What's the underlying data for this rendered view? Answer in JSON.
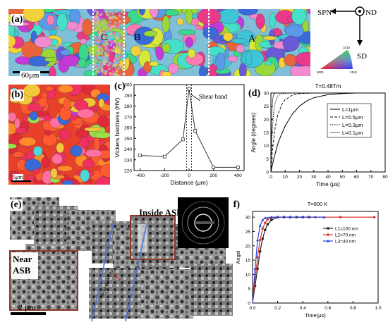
{
  "panel_a": {
    "label": "(a)",
    "region_labels": [
      "C",
      "B",
      "A"
    ],
    "scale_bar": "60μm",
    "axes": {
      "spn": "SPN",
      "nd": "ND",
      "sd": "SD"
    },
    "ipf_key": {
      "top": "1010",
      "left": "0001",
      "right": "2110"
    }
  },
  "panel_b": {
    "label": "(b)",
    "scale_bar": "5μm"
  },
  "panel_c": {
    "label": "(c)",
    "annotation": "Shear band"
  },
  "panel_d": {
    "label": "(d)",
    "title": "T=0.48Tm"
  },
  "panel_e": {
    "label": "(e)",
    "inside_label": "Inside ASB",
    "near_label_1": "Near",
    "near_label_2": "ASB",
    "scale_bar": "2 μm",
    "overlay_text": "shear direction"
  },
  "panel_f": {
    "label": "(f)",
    "title": "T=900 K"
  },
  "chart_data": [
    {
      "type": "line",
      "panel": "(c)",
      "xlabel": "Distance (μm)",
      "ylabel": "Vickers hardness (HV)",
      "xlim": [
        -450,
        450
      ],
      "ylim": [
        220,
        300
      ],
      "xticks": [
        -400,
        -200,
        0,
        200,
        400
      ],
      "yticks": [
        220,
        230,
        240,
        250,
        260,
        270,
        280,
        290,
        300
      ],
      "x": [
        -400,
        -200,
        -50,
        0,
        50,
        200,
        400
      ],
      "y": [
        234,
        233,
        249,
        296,
        257,
        223,
        223
      ],
      "annotation": "Shear band"
    },
    {
      "type": "line",
      "panel": "(d)",
      "title": "T=0.48Tm",
      "xlabel": "Time (μs)",
      "ylabel": "Angle (degrees)",
      "xlim": [
        0,
        80
      ],
      "ylim": [
        0,
        30
      ],
      "xticks": [
        0,
        10,
        20,
        30,
        40,
        50,
        60,
        70,
        80
      ],
      "yticks": [
        0,
        5,
        10,
        15,
        20,
        25,
        30
      ],
      "legend": "right",
      "series": [
        {
          "name": "L=1μm",
          "x": [
            0,
            2,
            5,
            8,
            10,
            15,
            20,
            25,
            30,
            40,
            50,
            60,
            80
          ],
          "y": [
            0,
            5,
            11,
            15,
            17.5,
            22,
            25,
            27,
            28.2,
            29.4,
            29.8,
            30,
            30
          ]
        },
        {
          "name": "L=0.5μm",
          "x": [
            0,
            1,
            3,
            5,
            8,
            10,
            15,
            20,
            30,
            40,
            80
          ],
          "y": [
            0,
            8,
            17,
            22,
            26,
            27.5,
            29.2,
            29.8,
            30,
            30,
            30
          ]
        },
        {
          "name": "L=0.3μm",
          "x": [
            0,
            0.5,
            1,
            2,
            3,
            5,
            8,
            12,
            20,
            80
          ],
          "y": [
            0,
            9,
            16,
            23,
            26.5,
            29,
            29.8,
            30,
            30,
            30
          ]
        },
        {
          "name": "L=0.1μm",
          "x": [
            0,
            0.3,
            0.6,
            1,
            1.5,
            2,
            3,
            5,
            80
          ],
          "y": [
            0,
            12,
            20,
            26,
            28.5,
            29.5,
            30,
            30,
            30
          ]
        }
      ]
    },
    {
      "type": "line",
      "panel": "(f)",
      "title": "T=900 K",
      "xlabel": "Time(μs)",
      "ylabel": "Angel",
      "xlim": [
        0,
        1.0
      ],
      "ylim": [
        0,
        32
      ],
      "xticks": [
        0.0,
        0.2,
        0.4,
        0.6,
        0.8,
        1.0
      ],
      "yticks": [
        0,
        5,
        10,
        15,
        20,
        25,
        30
      ],
      "legend": "right",
      "series": [
        {
          "name": "L1=100  nm",
          "color": "#222222",
          "x": [
            0,
            0.02,
            0.04,
            0.06,
            0.08,
            0.1,
            0.12,
            0.15,
            0.2,
            0.25,
            0.3,
            0.35,
            0.4,
            0.45
          ],
          "y": [
            0,
            6,
            12,
            18,
            22.5,
            25.5,
            27.5,
            29,
            30,
            30,
            30,
            30,
            30,
            30
          ]
        },
        {
          "name": "L2=70  nm",
          "color": "#d9342b",
          "x": [
            0,
            0.02,
            0.04,
            0.06,
            0.08,
            0.1,
            0.12,
            0.15,
            0.2,
            0.3,
            0.5,
            0.7,
            0.97
          ],
          "y": [
            0,
            8,
            16,
            22,
            26,
            28,
            29.2,
            29.8,
            30,
            30,
            30,
            30,
            30
          ]
        },
        {
          "name": "L3=40  nm",
          "color": "#2b3fd6",
          "x": [
            0,
            0.02,
            0.04,
            0.06,
            0.08,
            0.1,
            0.15,
            0.2,
            0.3,
            0.4,
            0.57
          ],
          "y": [
            0,
            12,
            22,
            27,
            29,
            29.7,
            30,
            30,
            30,
            30,
            30
          ]
        }
      ]
    }
  ]
}
